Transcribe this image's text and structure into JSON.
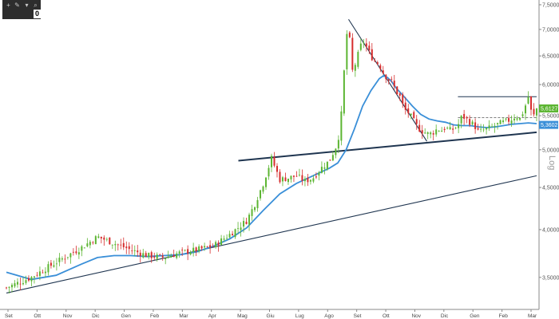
{
  "toolbar": {
    "icons": [
      "plus-icon",
      "pencil-icon",
      "brush-icon",
      "magnifier-icon"
    ],
    "badge": "0"
  },
  "chart_data": {
    "type": "candlestick",
    "title": "",
    "xlabel": "",
    "ylabel": "",
    "scale_label": "Log",
    "y_scale": "log",
    "ylim": [
      3.2,
      7.6
    ],
    "grid": false,
    "x_months": [
      "Set",
      "Ott",
      "Nov",
      "Dic",
      "Gen",
      "Feb",
      "Mar",
      "Apr",
      "Mag",
      "Giu",
      "Lug",
      "Ago",
      "Set",
      "Ott",
      "Nov",
      "Dic",
      "Gen",
      "Feb",
      "Mar"
    ],
    "y_ticks": [
      {
        "value": 3.5,
        "label": "3,5000"
      },
      {
        "value": 4.0,
        "label": "4,0000"
      },
      {
        "value": 4.5,
        "label": "4,5000"
      },
      {
        "value": 5.0,
        "label": "5,0000"
      },
      {
        "value": 5.5,
        "label": "5,5000"
      },
      {
        "value": 6.0,
        "label": "6,0000"
      },
      {
        "value": 6.5,
        "label": "6,5000"
      },
      {
        "value": 7.0,
        "label": "7,0000"
      },
      {
        "value": 7.5,
        "label": "7,5000"
      }
    ],
    "price_path": [
      [
        0,
        3.4
      ],
      [
        6,
        3.5
      ],
      [
        12,
        3.65
      ],
      [
        18,
        3.8
      ],
      [
        22,
        3.92
      ],
      [
        26,
        3.85
      ],
      [
        30,
        3.78
      ],
      [
        34,
        3.72
      ],
      [
        38,
        3.7
      ],
      [
        42,
        3.75
      ],
      [
        46,
        3.78
      ],
      [
        50,
        3.82
      ],
      [
        54,
        3.95
      ],
      [
        58,
        4.1
      ],
      [
        60,
        4.3
      ],
      [
        62,
        4.55
      ],
      [
        64,
        4.88
      ],
      [
        66,
        4.6
      ],
      [
        68,
        4.62
      ],
      [
        70,
        4.65
      ],
      [
        72,
        4.58
      ],
      [
        74,
        4.62
      ],
      [
        76,
        4.75
      ],
      [
        78,
        4.85
      ],
      [
        80,
        5.1
      ],
      [
        81,
        5.6
      ],
      [
        82,
        6.8
      ],
      [
        82.6,
        7.15
      ],
      [
        83.3,
        6.2
      ],
      [
        84,
        6.3
      ],
      [
        85,
        6.55
      ],
      [
        86,
        6.8
      ],
      [
        87,
        6.65
      ],
      [
        88,
        6.5
      ],
      [
        89,
        6.4
      ],
      [
        90,
        6.35
      ],
      [
        91,
        6.2
      ],
      [
        92,
        6.1
      ],
      [
        93,
        6.05
      ],
      [
        94,
        5.9
      ],
      [
        95,
        5.8
      ],
      [
        96,
        5.6
      ],
      [
        97,
        5.55
      ],
      [
        98,
        5.45
      ],
      [
        99,
        5.35
      ],
      [
        100,
        5.28
      ],
      [
        101,
        5.25
      ],
      [
        102,
        5.22
      ],
      [
        103,
        5.25
      ],
      [
        104,
        5.3
      ],
      [
        105,
        5.28
      ],
      [
        106,
        5.32
      ],
      [
        107,
        5.28
      ],
      [
        108,
        5.3
      ],
      [
        109,
        5.35
      ],
      [
        110,
        5.5
      ],
      [
        111,
        5.45
      ],
      [
        112,
        5.4
      ],
      [
        113,
        5.35
      ],
      [
        114,
        5.25
      ],
      [
        115,
        5.28
      ],
      [
        116,
        5.3
      ],
      [
        117,
        5.32
      ],
      [
        118,
        5.35
      ],
      [
        119,
        5.38
      ],
      [
        120,
        5.4
      ],
      [
        121,
        5.42
      ],
      [
        122,
        5.45
      ],
      [
        123,
        5.5
      ],
      [
        124,
        5.45
      ],
      [
        125,
        5.6
      ],
      [
        126,
        5.8
      ],
      [
        127,
        5.45
      ],
      [
        128,
        5.61
      ]
    ],
    "moving_average": [
      [
        0,
        3.55
      ],
      [
        6,
        3.48
      ],
      [
        12,
        3.52
      ],
      [
        18,
        3.63
      ],
      [
        22,
        3.7
      ],
      [
        26,
        3.72
      ],
      [
        30,
        3.72
      ],
      [
        34,
        3.71
      ],
      [
        38,
        3.72
      ],
      [
        42,
        3.73
      ],
      [
        46,
        3.76
      ],
      [
        50,
        3.82
      ],
      [
        54,
        3.9
      ],
      [
        58,
        4.02
      ],
      [
        62,
        4.22
      ],
      [
        66,
        4.42
      ],
      [
        70,
        4.55
      ],
      [
        74,
        4.65
      ],
      [
        78,
        4.75
      ],
      [
        80,
        4.82
      ],
      [
        82,
        5.0
      ],
      [
        84,
        5.3
      ],
      [
        86,
        5.65
      ],
      [
        88,
        5.9
      ],
      [
        90,
        6.1
      ],
      [
        91,
        6.15
      ],
      [
        92,
        6.12
      ],
      [
        93,
        6.05
      ],
      [
        94,
        5.95
      ],
      [
        96,
        5.8
      ],
      [
        98,
        5.65
      ],
      [
        100,
        5.52
      ],
      [
        102,
        5.45
      ],
      [
        104,
        5.42
      ],
      [
        106,
        5.4
      ],
      [
        108,
        5.36
      ],
      [
        110,
        5.35
      ],
      [
        112,
        5.35
      ],
      [
        114,
        5.33
      ],
      [
        116,
        5.32
      ],
      [
        118,
        5.33
      ],
      [
        120,
        5.35
      ],
      [
        122,
        5.37
      ],
      [
        124,
        5.38
      ],
      [
        126,
        5.39
      ],
      [
        128,
        5.38
      ]
    ],
    "trendlines": [
      {
        "name": "long-support",
        "from": [
          0,
          3.35
        ],
        "to": [
          128,
          4.65
        ]
      },
      {
        "name": "neckline",
        "from": [
          56,
          4.85
        ],
        "to": [
          128,
          5.25
        ]
      },
      {
        "name": "down-trend",
        "from": [
          82.6,
          7.2
        ],
        "to": [
          101.5,
          5.12
        ]
      },
      {
        "name": "resistance",
        "from": [
          109,
          5.8
        ],
        "to": [
          128,
          5.8
        ]
      },
      {
        "name": "dashed-level",
        "from": [
          109,
          5.47
        ],
        "to": [
          128,
          5.47
        ]
      }
    ],
    "price_tags": [
      {
        "label": "5,6127",
        "value": 5.6127,
        "color": "#5cb532"
      },
      {
        "label": "5,3602",
        "value": 5.3602,
        "color": "#3a8fd8"
      }
    ],
    "colors": {
      "up": "#5cb532",
      "down": "#d62d2d",
      "ma": "#3a8fd8",
      "trend": "#1f3550"
    }
  }
}
